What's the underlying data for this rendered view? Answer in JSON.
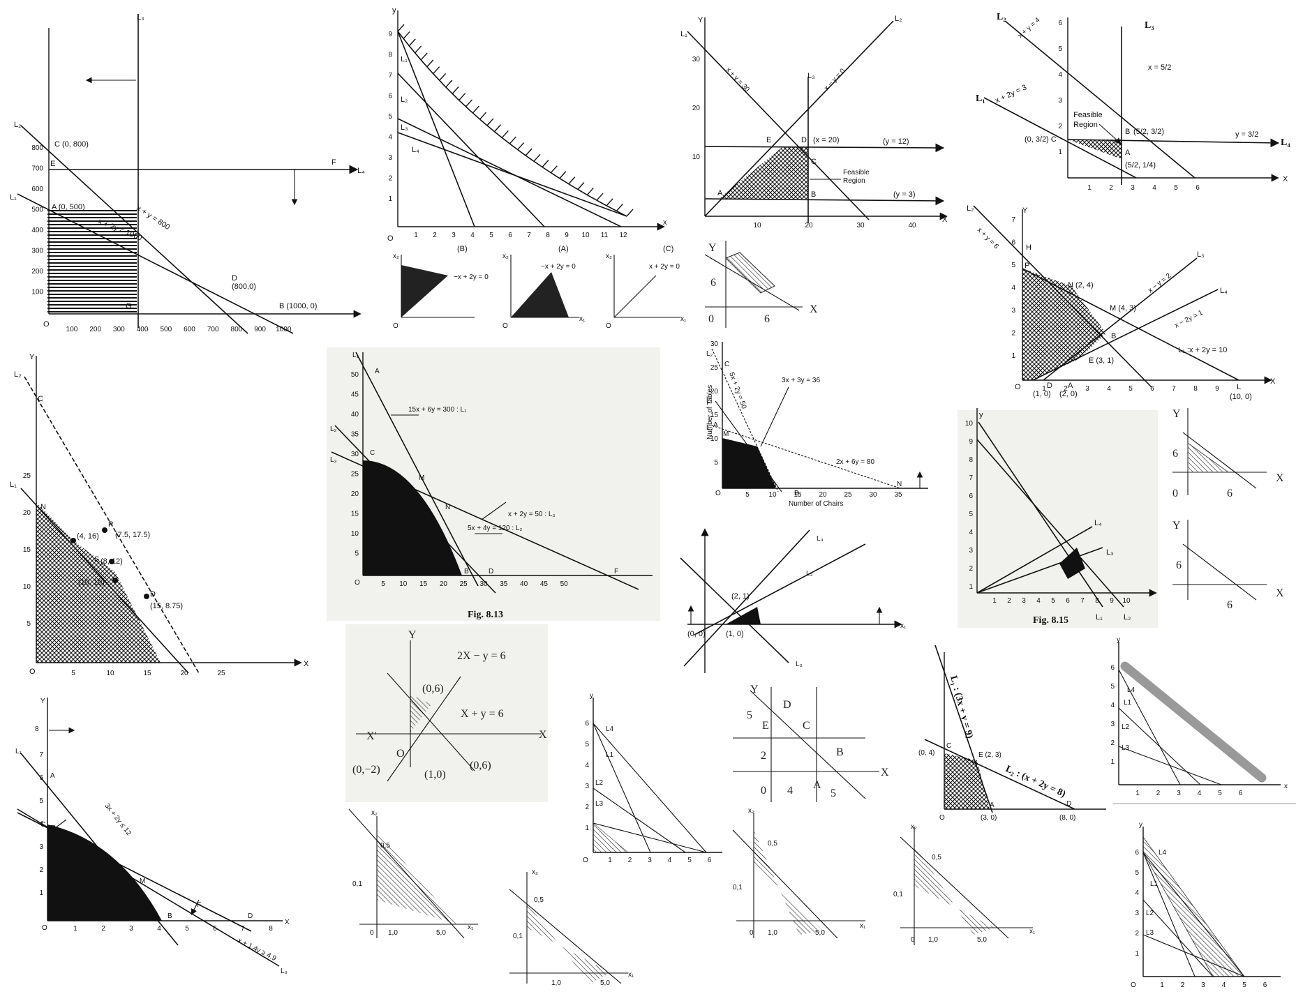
{
  "panels": {
    "p1": {
      "points": [
        "C (0, 800)",
        "A (0, 500)",
        "D",
        "(800,0)",
        "B (1000, 0)",
        "E",
        "F",
        "G",
        "O"
      ],
      "lines": [
        "L₃",
        "L₂",
        "L₁",
        "L₄",
        "x + y = 800",
        "x + 2y = 1000"
      ],
      "yticks": [
        "800",
        "700",
        "600",
        "500",
        "400",
        "300",
        "200",
        "100"
      ],
      "xticks": [
        "100",
        "200",
        "300",
        "400",
        "500",
        "600",
        "700",
        "800",
        "900",
        "1000"
      ]
    },
    "p2": {
      "axis": [
        "y",
        "x",
        "O"
      ],
      "lines": [
        "L₁",
        "L₂",
        "L₃",
        "L₄"
      ],
      "yticks": [
        "9",
        "8",
        "7",
        "6",
        "5",
        "4",
        "3",
        "2",
        "1"
      ],
      "xticks": [
        "1",
        "2",
        "3",
        "4",
        "5",
        "6",
        "7",
        "8",
        "9",
        "10",
        "11",
        "12"
      ],
      "subcaptions": [
        "(B)",
        "(A)",
        "(C)"
      ],
      "sub_eq": [
        "−x + 2y = 0",
        "−x + 2y = 0",
        "x + 2y = 0"
      ],
      "sub_axis": [
        "x₂",
        "x₁",
        "O"
      ]
    },
    "p3": {
      "labels": [
        "Y",
        "L₁",
        "L₂",
        "L₃",
        "x + y = 30",
        "x − y = 0",
        "E",
        "D",
        "(x = 20)",
        "(y = 12)",
        "C",
        "Feasible",
        "Region",
        "A",
        "B",
        "(y = 3)",
        "X"
      ],
      "yticks": [
        "30",
        "20",
        "10"
      ],
      "xticks": [
        "10",
        "20",
        "30",
        "40"
      ]
    },
    "p4": {
      "labels": [
        "L₂",
        "x + y = 4",
        "L₃",
        "x = 5/2",
        "L₁",
        "x + 2y = 3",
        "Feasible",
        "Region",
        "B",
        "(5/2, 3/2)",
        "y = 3/2",
        "L₄",
        "(0, 3/2) C",
        "A",
        "(5/2, 1/4)",
        "X"
      ],
      "yticks": [
        "6",
        "5",
        "4",
        "3",
        "2",
        "1"
      ],
      "xticks": [
        "1",
        "2",
        "3",
        "4",
        "5",
        "6"
      ]
    },
    "p5": {
      "labels": [
        "Y",
        "6",
        "0",
        "6",
        "X"
      ]
    },
    "p6": {
      "labels": [
        "L₂",
        "x + y = 6",
        "Y",
        "H",
        "P",
        "N (2, 4)",
        "L₃",
        "M (4, 3)",
        "x − y = 2",
        "L₄",
        "x − 2y = 1",
        "B",
        "E (3, 1)",
        "L₁ :x + 2y = 10",
        "(1, 0)",
        "(2, 0)",
        "D",
        "A",
        "L",
        "(10, 0)",
        "X",
        "O"
      ],
      "yticks": [
        "7",
        "6",
        "5",
        "4",
        "3",
        "2",
        "1"
      ],
      "xticks": [
        "1",
        "2",
        "3",
        "4",
        "5",
        "6",
        "7",
        "8",
        "9"
      ]
    },
    "p7": {
      "labels": [
        "Y",
        "L₂",
        "C",
        "L₁",
        "N",
        "(4, 16)",
        "P",
        "(7.5, 17.5)",
        "S",
        "(8, 12)",
        "(10, 10)",
        "D",
        "(15, 8.75)",
        "X",
        "O"
      ],
      "yticks": [
        "25",
        "20",
        "15",
        "10",
        "5"
      ],
      "xticks": [
        "5",
        "10",
        "15",
        "20",
        "25"
      ]
    },
    "p8": {
      "labels": [
        "L₁",
        "A",
        "15x + 6y = 300 : L₁",
        "L₂",
        "C",
        "L₃",
        "E",
        "M",
        "N",
        "x + 2y = 50 : L₃",
        "5x + 4y = 120 : L₂",
        "B",
        "D",
        "F",
        "O"
      ],
      "yticks": [
        "50",
        "45",
        "40",
        "35",
        "30",
        "25",
        "20",
        "15",
        "10",
        "5"
      ],
      "xticks": [
        "5",
        "10",
        "15",
        "20",
        "25",
        "30",
        "35",
        "40",
        "45",
        "50"
      ],
      "caption": "Fig. 8.13"
    },
    "p9": {
      "labels": [
        "Number of Tables",
        "Number of Chairs",
        "L₂",
        "C",
        "5x + 2y = 50",
        "L₁",
        "A",
        "L₃",
        "M",
        "3x + 3y = 36",
        "2x + 6y = 80",
        "N",
        "D",
        "B",
        "O"
      ],
      "yticks": [
        "30",
        "25",
        "20",
        "15",
        "10",
        "5"
      ],
      "xticks": [
        "5",
        "10",
        "15",
        "20",
        "25",
        "30",
        "35"
      ]
    },
    "p10": {
      "labels": [
        "L₄",
        "L₃",
        "(2, 1)",
        "(0, 0)",
        "(1, 0)",
        "x₁",
        "L₃"
      ]
    },
    "p11": {
      "labels": [
        "y",
        "L₄",
        "L₃",
        "L₁",
        "L₂"
      ],
      "yticks": [
        "10",
        "9",
        "8",
        "7",
        "6",
        "5",
        "4",
        "3",
        "2",
        "1"
      ],
      "xticks": [
        "1",
        "2",
        "3",
        "4",
        "5",
        "6",
        "7",
        "8",
        "9",
        "10"
      ],
      "caption": "Fig. 8.15"
    },
    "p12": {
      "labels": [
        "Y",
        "6",
        "0",
        "6",
        "X",
        "Y",
        "6",
        "6",
        "X"
      ]
    },
    "p13": {
      "labels": [
        "Y",
        "L₁",
        "8",
        "3x + 2y ≤ 12",
        "A",
        "E",
        "C",
        "N",
        "M",
        "B",
        "F",
        "D",
        "x + 1.4y ≥ 4.9",
        "L₃",
        "X",
        "O"
      ],
      "yticks": [
        "7",
        "6",
        "5",
        "4",
        "3",
        "2",
        "1"
      ],
      "xticks": [
        "1",
        "2",
        "3",
        "4",
        "5",
        "6",
        "7",
        "8"
      ]
    },
    "p14": {
      "labels": [
        "Y",
        "2X − y = 6",
        "(0,6)",
        "X + y = 6",
        "X'",
        "X",
        "O",
        "(0,−2)",
        "(1,0)",
        "(0,6)"
      ]
    },
    "p15": {
      "labels": [
        "y",
        "L4",
        "L1",
        "L2",
        "L3",
        "O"
      ],
      "yticks": [
        "6",
        "5",
        "4",
        "3",
        "2",
        "1"
      ],
      "xticks": [
        "1",
        "2",
        "3",
        "4",
        "5",
        "6"
      ]
    },
    "p16": {
      "labels": [
        "Y",
        "D",
        "5",
        "E",
        "C",
        "B",
        "2",
        "X",
        "0",
        "4",
        "A",
        "5"
      ]
    },
    "p17": {
      "labels": [
        "L₁ : (3x + y = 9)",
        "(0, 4)",
        "C",
        "E (2, 3)",
        "L₂ : (x + 2y = 8)",
        "D",
        "O",
        "A",
        "(3, 0)",
        "(8, 0)"
      ]
    },
    "p18": {
      "labels": [
        "y",
        "L4",
        "L1",
        "L2",
        "L3",
        "x"
      ],
      "yticks": [
        "6",
        "5",
        "4",
        "3",
        "2",
        "1"
      ],
      "xticks": [
        "1",
        "2",
        "3",
        "4",
        "5",
        "6"
      ]
    },
    "p19": {
      "labels": [
        "x₂",
        "0,5",
        "0,1",
        "0",
        "1,0",
        "5,0",
        "x₁"
      ]
    },
    "p20": {
      "labels": [
        "y",
        "L4",
        "L1",
        "L2",
        "L3",
        "O"
      ],
      "yticks": [
        "6",
        "5",
        "4",
        "3",
        "2",
        "1"
      ],
      "xticks": [
        "1",
        "2",
        "3",
        "4",
        "5",
        "6"
      ]
    }
  }
}
